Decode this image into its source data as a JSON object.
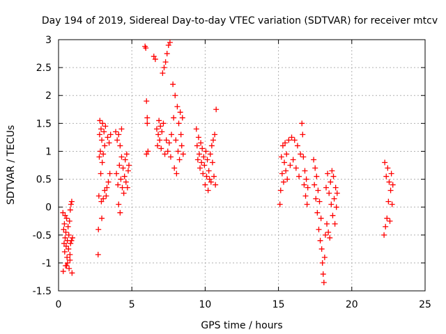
{
  "chart_data": {
    "type": "scatter",
    "title": "Day 194 of 2019, Sidereal Day-to-day VTEC variation (SDTVAR) for receiver mtcv",
    "xlabel": "GPS time / hours",
    "ylabel": "SDTVAR / TECUs",
    "xlim": [
      0,
      25
    ],
    "ylim": [
      -1.5,
      3
    ],
    "xticks": [
      0,
      5,
      10,
      15,
      20,
      25
    ],
    "xtick_labels": [
      "0",
      "5",
      "10",
      "15",
      "20",
      "25"
    ],
    "yticks": [
      -1.5,
      -1,
      -0.5,
      0,
      0.5,
      1,
      1.5,
      2,
      2.5,
      3
    ],
    "ytick_labels": [
      "-1.5",
      "-1",
      "-0.5",
      "0",
      "0.5",
      "1",
      "1.5",
      "2",
      "2.5",
      "3"
    ],
    "grid": true,
    "marker": "+",
    "color": "#ff0000",
    "series": [
      {
        "name": "SDTVAR",
        "points": [
          [
            0.3,
            -0.1
          ],
          [
            0.32,
            -1.15
          ],
          [
            0.35,
            -0.4
          ],
          [
            0.38,
            -0.65
          ],
          [
            0.4,
            -0.3
          ],
          [
            0.42,
            -0.8
          ],
          [
            0.45,
            -0.55
          ],
          [
            0.48,
            -1.05
          ],
          [
            0.5,
            -0.45
          ],
          [
            0.52,
            -0.7
          ],
          [
            0.55,
            -0.2
          ],
          [
            0.58,
            -0.9
          ],
          [
            0.6,
            -0.6
          ],
          [
            0.62,
            -1.0
          ],
          [
            0.65,
            -0.35
          ],
          [
            0.68,
            -0.75
          ],
          [
            0.7,
            -0.5
          ],
          [
            0.72,
            -1.1
          ],
          [
            0.75,
            -0.25
          ],
          [
            0.78,
            -0.85
          ],
          [
            0.8,
            -0.05
          ],
          [
            0.82,
            -0.65
          ],
          [
            0.85,
            0.05
          ],
          [
            0.88,
            -0.6
          ],
          [
            0.9,
            0.1
          ],
          [
            0.92,
            -1.18
          ],
          [
            0.95,
            -0.55
          ],
          [
            0.78,
            -0.95
          ],
          [
            0.45,
            -0.15
          ],
          [
            0.55,
            -1.05
          ],
          [
            2.7,
            -0.85
          ],
          [
            2.72,
            -0.4
          ],
          [
            2.75,
            0.2
          ],
          [
            2.78,
            0.9
          ],
          [
            2.8,
            1.3
          ],
          [
            2.82,
            1.55
          ],
          [
            2.85,
            1.0
          ],
          [
            2.88,
            0.6
          ],
          [
            2.9,
            1.4
          ],
          [
            2.92,
            0.1
          ],
          [
            2.95,
            1.2
          ],
          [
            2.98,
            0.8
          ],
          [
            3.0,
            1.5
          ],
          [
            3.05,
            0.95
          ],
          [
            3.1,
            1.35
          ],
          [
            3.15,
            1.1
          ],
          [
            3.2,
            1.45
          ],
          [
            3.25,
            0.2
          ],
          [
            3.3,
            0.35
          ],
          [
            3.35,
            1.25
          ],
          [
            3.4,
            0.45
          ],
          [
            3.45,
            1.15
          ],
          [
            3.5,
            0.6
          ],
          [
            3.55,
            1.3
          ],
          [
            2.95,
            -0.2
          ],
          [
            3.05,
            0.15
          ],
          [
            3.15,
            0.3
          ],
          [
            3.9,
            1.35
          ],
          [
            3.95,
            0.6
          ],
          [
            4.0,
            1.2
          ],
          [
            4.05,
            0.4
          ],
          [
            4.1,
            1.3
          ],
          [
            4.15,
            0.75
          ],
          [
            4.2,
            1.1
          ],
          [
            4.25,
            0.5
          ],
          [
            4.3,
            0.9
          ],
          [
            4.35,
            0.35
          ],
          [
            4.4,
            0.7
          ],
          [
            4.45,
            0.25
          ],
          [
            4.5,
            0.55
          ],
          [
            4.55,
            0.85
          ],
          [
            4.6,
            0.45
          ],
          [
            4.65,
            0.95
          ],
          [
            4.7,
            0.35
          ],
          [
            4.75,
            0.65
          ],
          [
            4.8,
            0.75
          ],
          [
            4.1,
            0.05
          ],
          [
            4.2,
            -0.1
          ],
          [
            4.3,
            1.4
          ],
          [
            5.9,
            2.88
          ],
          [
            5.95,
            2.85
          ],
          [
            6.0,
            1.9
          ],
          [
            6.05,
            1.6
          ],
          [
            6.1,
            1.0
          ],
          [
            6.0,
            0.95
          ],
          [
            6.05,
            1.5
          ],
          [
            6.5,
            2.7
          ],
          [
            6.6,
            2.65
          ],
          [
            6.7,
            1.4
          ],
          [
            6.75,
            1.1
          ],
          [
            6.8,
            1.3
          ],
          [
            6.85,
            1.55
          ],
          [
            6.9,
            1.2
          ],
          [
            6.95,
            1.45
          ],
          [
            7.0,
            1.05
          ],
          [
            7.05,
            1.35
          ],
          [
            7.1,
            2.4
          ],
          [
            7.15,
            1.5
          ],
          [
            7.2,
            2.5
          ],
          [
            7.25,
            0.95
          ],
          [
            7.3,
            2.6
          ],
          [
            7.35,
            1.2
          ],
          [
            7.4,
            2.75
          ],
          [
            7.45,
            1.0
          ],
          [
            7.5,
            2.9
          ],
          [
            7.55,
            1.15
          ],
          [
            7.6,
            2.95
          ],
          [
            7.65,
            0.9
          ],
          [
            7.7,
            1.3
          ],
          [
            7.8,
            2.2
          ],
          [
            7.85,
            1.6
          ],
          [
            7.9,
            0.7
          ],
          [
            7.95,
            2.0
          ],
          [
            8.0,
            1.2
          ],
          [
            8.05,
            0.6
          ],
          [
            8.1,
            1.8
          ],
          [
            8.15,
            1.0
          ],
          [
            8.2,
            1.5
          ],
          [
            8.25,
            0.85
          ],
          [
            8.3,
            1.7
          ],
          [
            8.35,
            1.3
          ],
          [
            8.4,
            1.1
          ],
          [
            8.45,
            1.6
          ],
          [
            8.5,
            0.95
          ],
          [
            9.4,
            1.4
          ],
          [
            9.45,
            1.1
          ],
          [
            9.5,
            0.85
          ],
          [
            9.55,
            1.25
          ],
          [
            9.6,
            0.95
          ],
          [
            9.65,
            0.7
          ],
          [
            9.7,
            1.15
          ],
          [
            9.75,
            0.8
          ],
          [
            9.8,
            1.05
          ],
          [
            9.85,
            0.6
          ],
          [
            9.9,
            0.9
          ],
          [
            9.95,
            0.75
          ],
          [
            10.0,
            0.4
          ],
          [
            10.05,
            1.0
          ],
          [
            10.1,
            0.55
          ],
          [
            10.15,
            0.85
          ],
          [
            10.2,
            0.3
          ],
          [
            10.25,
            0.65
          ],
          [
            10.3,
            0.5
          ],
          [
            10.35,
            0.95
          ],
          [
            10.4,
            0.45
          ],
          [
            10.45,
            1.1
          ],
          [
            10.5,
            0.8
          ],
          [
            10.55,
            1.2
          ],
          [
            10.6,
            0.55
          ],
          [
            10.65,
            1.3
          ],
          [
            10.7,
            0.4
          ],
          [
            10.75,
            1.75
          ],
          [
            15.1,
            0.05
          ],
          [
            15.15,
            0.3
          ],
          [
            15.2,
            0.9
          ],
          [
            15.25,
            0.6
          ],
          [
            15.3,
            1.1
          ],
          [
            15.35,
            0.45
          ],
          [
            15.4,
            0.8
          ],
          [
            15.45,
            1.15
          ],
          [
            15.5,
            0.65
          ],
          [
            15.55,
            0.95
          ],
          [
            15.6,
            0.5
          ],
          [
            15.7,
            1.2
          ],
          [
            15.8,
            0.75
          ],
          [
            15.9,
            1.25
          ],
          [
            16.0,
            0.85
          ],
          [
            16.1,
            1.2
          ],
          [
            16.2,
            0.7
          ],
          [
            16.3,
            1.1
          ],
          [
            16.4,
            0.55
          ],
          [
            16.5,
            0.95
          ],
          [
            16.6,
            1.5
          ],
          [
            16.65,
            1.3
          ],
          [
            16.7,
            0.9
          ],
          [
            16.75,
            0.4
          ],
          [
            16.8,
            0.65
          ],
          [
            16.85,
            0.2
          ],
          [
            16.9,
            0.5
          ],
          [
            16.95,
            0.05
          ],
          [
            17.0,
            0.35
          ],
          [
            17.4,
            0.85
          ],
          [
            17.45,
            0.4
          ],
          [
            17.5,
            0.7
          ],
          [
            17.55,
            0.15
          ],
          [
            17.6,
            0.55
          ],
          [
            17.65,
            -0.1
          ],
          [
            17.7,
            0.3
          ],
          [
            17.75,
            -0.4
          ],
          [
            17.8,
            0.1
          ],
          [
            17.85,
            -0.6
          ],
          [
            17.9,
            -0.2
          ],
          [
            17.95,
            -0.75
          ],
          [
            18.0,
            -1.0
          ],
          [
            18.05,
            -1.2
          ],
          [
            18.1,
            -1.35
          ],
          [
            18.15,
            -0.9
          ],
          [
            18.2,
            -0.5
          ],
          [
            18.25,
            0.35
          ],
          [
            18.3,
            -0.3
          ],
          [
            18.35,
            0.6
          ],
          [
            18.4,
            -0.45
          ],
          [
            18.45,
            0.25
          ],
          [
            18.5,
            -0.55
          ],
          [
            18.55,
            0.45
          ],
          [
            18.6,
            0.05
          ],
          [
            18.65,
            0.65
          ],
          [
            18.7,
            -0.15
          ],
          [
            18.75,
            0.55
          ],
          [
            18.8,
            0.15
          ],
          [
            18.85,
            -0.3
          ],
          [
            18.9,
            0.35
          ],
          [
            18.95,
            0.0
          ],
          [
            19.0,
            0.25
          ],
          [
            22.2,
            -0.5
          ],
          [
            22.25,
            0.8
          ],
          [
            22.3,
            -0.35
          ],
          [
            22.35,
            0.55
          ],
          [
            22.4,
            -0.2
          ],
          [
            22.45,
            0.7
          ],
          [
            22.5,
            0.1
          ],
          [
            22.55,
            0.45
          ],
          [
            22.6,
            -0.25
          ],
          [
            22.65,
            0.3
          ],
          [
            22.7,
            0.6
          ],
          [
            22.75,
            0.05
          ],
          [
            22.8,
            0.4
          ]
        ]
      }
    ]
  }
}
